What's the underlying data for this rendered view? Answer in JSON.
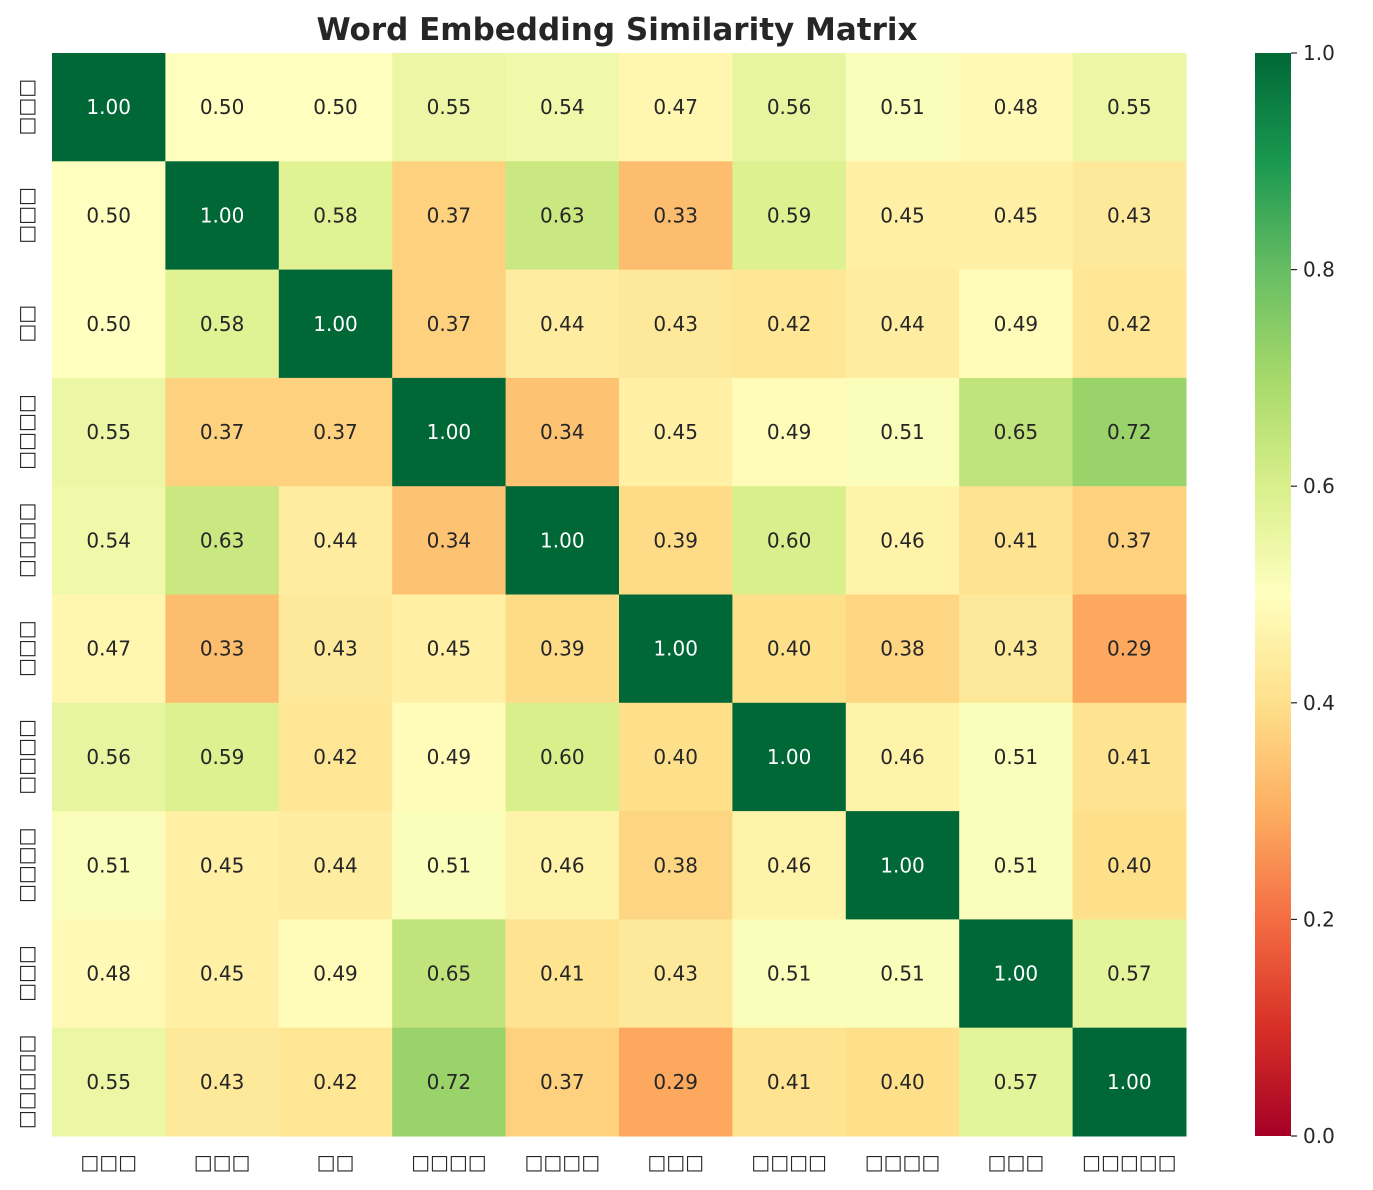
{
  "chart_data": {
    "type": "heatmap",
    "title": "Word Embedding Similarity Matrix",
    "xlabel": "",
    "ylabel": "",
    "x_labels": [
      "□□□",
      "□□□",
      "□□",
      "□□□□",
      "□□□□",
      "□□□",
      "□□□□",
      "□□□□",
      "□□□",
      "□□□□□"
    ],
    "y_labels": [
      "□□□",
      "□□□",
      "□□",
      "□□□□",
      "□□□□",
      "□□□",
      "□□□□",
      "□□□□",
      "□□□",
      "□□□□□"
    ],
    "values": [
      [
        1.0,
        0.5,
        0.5,
        0.55,
        0.54,
        0.47,
        0.56,
        0.51,
        0.48,
        0.55
      ],
      [
        0.5,
        1.0,
        0.58,
        0.37,
        0.63,
        0.33,
        0.59,
        0.45,
        0.45,
        0.43
      ],
      [
        0.5,
        0.58,
        1.0,
        0.37,
        0.44,
        0.43,
        0.42,
        0.44,
        0.49,
        0.42
      ],
      [
        0.55,
        0.37,
        0.37,
        1.0,
        0.34,
        0.45,
        0.49,
        0.51,
        0.65,
        0.72
      ],
      [
        0.54,
        0.63,
        0.44,
        0.34,
        1.0,
        0.39,
        0.6,
        0.46,
        0.41,
        0.37
      ],
      [
        0.47,
        0.33,
        0.43,
        0.45,
        0.39,
        1.0,
        0.4,
        0.38,
        0.43,
        0.29
      ],
      [
        0.56,
        0.59,
        0.42,
        0.49,
        0.6,
        0.4,
        1.0,
        0.46,
        0.51,
        0.41
      ],
      [
        0.51,
        0.45,
        0.44,
        0.51,
        0.46,
        0.38,
        0.46,
        1.0,
        0.51,
        0.4
      ],
      [
        0.48,
        0.45,
        0.49,
        0.65,
        0.41,
        0.43,
        0.51,
        0.51,
        1.0,
        0.57
      ],
      [
        0.55,
        0.43,
        0.42,
        0.72,
        0.37,
        0.29,
        0.41,
        0.4,
        0.57,
        1.0
      ]
    ],
    "value_format": "0.00",
    "colormap": "RdYlGn",
    "colormap_stops": [
      "#a50026",
      "#d73027",
      "#f46d43",
      "#fdae61",
      "#fee08b",
      "#ffffbf",
      "#d9ef8b",
      "#a6d96a",
      "#66bd63",
      "#1a9850",
      "#006837"
    ],
    "vmin": 0.0,
    "vmax": 1.0,
    "colorbar_ticks": [
      "0.0",
      "0.2",
      "0.4",
      "0.6",
      "0.8",
      "1.0"
    ],
    "colorbar_placement": "right",
    "grid": false
  }
}
